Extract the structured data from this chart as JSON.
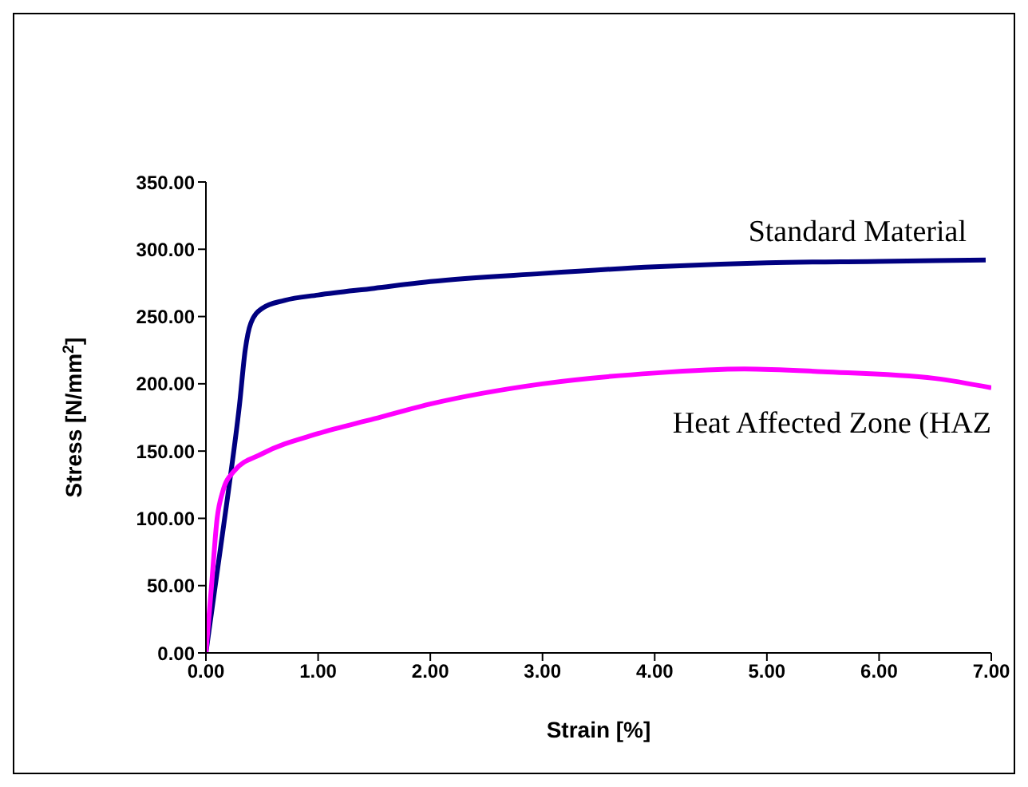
{
  "chart_data": {
    "type": "line",
    "xlabel": "Strain [%]",
    "ylabel": "Stress [N/mm$^{2}$]",
    "xlim": [
      0,
      7
    ],
    "xticks": [
      {
        "value": 0,
        "label": "0.00"
      },
      {
        "value": 1,
        "label": "1.00"
      },
      {
        "value": 2,
        "label": "2.00"
      },
      {
        "value": 3,
        "label": "3.00"
      },
      {
        "value": 4,
        "label": "4.00"
      },
      {
        "value": 5,
        "label": "5.00"
      },
      {
        "value": 6,
        "label": "6.00"
      },
      {
        "value": 7,
        "label": "7.00"
      }
    ],
    "ylim": [
      0,
      350
    ],
    "yticks": [
      {
        "value": 0,
        "label": "0.00"
      },
      {
        "value": 50,
        "label": "50.00"
      },
      {
        "value": 100,
        "label": "100.00"
      },
      {
        "value": 150,
        "label": "150.00"
      },
      {
        "value": 200,
        "label": "200.00"
      },
      {
        "value": 250,
        "label": "250.00"
      },
      {
        "value": 300,
        "label": "300.00"
      },
      {
        "value": 350,
        "label": "350.00"
      }
    ],
    "grid": false,
    "legend": false,
    "marker": "none",
    "line_style": "solid",
    "series": [
      {
        "name": "Standard Material",
        "color": "#000080",
        "x": [
          0,
          0.1,
          0.2,
          0.3,
          0.35,
          0.4,
          0.5,
          0.7,
          1,
          1.5,
          2,
          3,
          4,
          5,
          6,
          6.95
        ],
        "values": [
          0,
          60,
          120,
          185,
          225,
          245,
          256,
          262,
          266,
          271,
          276,
          282,
          287,
          290,
          291,
          292
        ]
      },
      {
        "name": "Heat Affected Zone (HAZ",
        "color": "#ff00ff",
        "x": [
          0,
          0.05,
          0.1,
          0.15,
          0.25,
          0.5,
          1,
          1.5,
          2,
          3,
          4,
          4.8,
          5.5,
          6.5,
          7
        ],
        "values": [
          0,
          50,
          100,
          120,
          135,
          148,
          163,
          174,
          185,
          200,
          208,
          211,
          209,
          204,
          197
        ]
      }
    ]
  }
}
